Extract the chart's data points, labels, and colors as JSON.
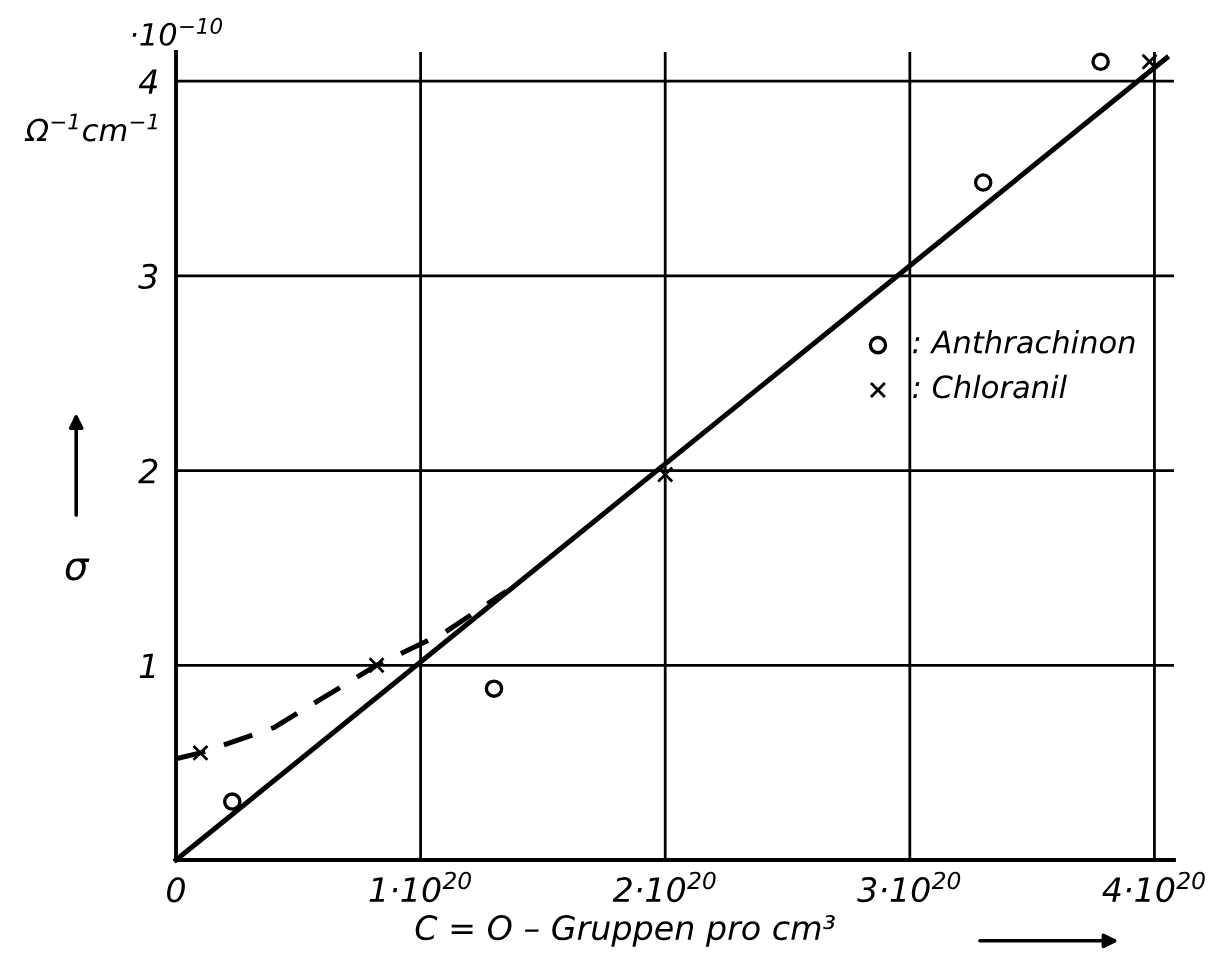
{
  "chart_data": {
    "type": "scatter",
    "xlabel": "C = O – Gruppen pro cm³",
    "ylabel": "σ",
    "annotations": [
      "Ω$^{−1}$cm$^{−1}$",
      "·10$^{−10}$"
    ],
    "series": [
      {
        "name": ": Anthrachinon",
        "marker": "circle",
        "color": "#000000",
        "x": [
          2.3e+19,
          1.3e+20,
          3.3e+20,
          3.78e+20
        ],
        "values": [
          0.3,
          0.88,
          3.48,
          4.1
        ]
      },
      {
        "name": ": Chloranil",
        "marker": "cross",
        "color": "#000000",
        "x": [
          1e+19,
          8.2e+19,
          2e+20,
          3.98e+20
        ],
        "values": [
          0.55,
          1.0,
          1.98,
          4.1
        ]
      },
      {
        "type": "line",
        "line_style": "solid",
        "color": "#000000",
        "x": [
          0,
          4.05e+20
        ],
        "values": [
          0,
          4.12
        ]
      },
      {
        "type": "line",
        "line_style": "dashed",
        "color": "#000000",
        "x": [
          0,
          1e+19,
          4e+19,
          8.2e+19,
          1.1e+20,
          1.35e+20
        ],
        "values": [
          0.52,
          0.55,
          0.68,
          1.0,
          1.17,
          1.38
        ]
      }
    ],
    "xlim": [
      0,
      4.08e+20
    ],
    "ylim": [
      0,
      4.15
    ],
    "xticks": [
      0,
      {
        "value": 1e+20,
        "label": "1·10$^{20}$"
      },
      {
        "value": 2e+20,
        "label": "2·10$^{20}$"
      },
      {
        "value": 3e+20,
        "label": "3·10$^{20}$"
      },
      {
        "value": 4e+20,
        "label": "4·10$^{20}$"
      }
    ],
    "yticks": [
      1,
      2,
      3,
      4
    ],
    "grid": true,
    "legend": "right"
  }
}
